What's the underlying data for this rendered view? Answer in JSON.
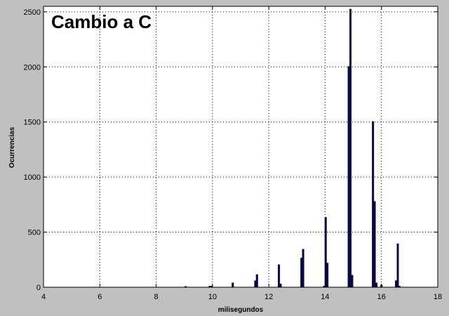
{
  "chart_data": {
    "type": "bar",
    "title": "Cambio a C",
    "xlabel": "milisegundos",
    "ylabel": "Ocurrencias",
    "xlim": [
      4,
      18
    ],
    "ylim": [
      0,
      2550
    ],
    "xticks": [
      4,
      6,
      8,
      10,
      12,
      14,
      16,
      18
    ],
    "yticks": [
      0,
      500,
      1000,
      1500,
      2000,
      2500
    ],
    "grid": true,
    "bar_color": "#0a0a50",
    "bars": [
      {
        "x": 9.05,
        "y": 8
      },
      {
        "x": 9.9,
        "y": 10
      },
      {
        "x": 9.98,
        "y": 12
      },
      {
        "x": 10.72,
        "y": 40
      },
      {
        "x": 11.52,
        "y": 60
      },
      {
        "x": 11.58,
        "y": 115
      },
      {
        "x": 12.36,
        "y": 205
      },
      {
        "x": 12.42,
        "y": 30
      },
      {
        "x": 13.16,
        "y": 265
      },
      {
        "x": 13.22,
        "y": 345
      },
      {
        "x": 13.96,
        "y": 10
      },
      {
        "x": 14.02,
        "y": 635
      },
      {
        "x": 14.08,
        "y": 220
      },
      {
        "x": 14.84,
        "y": 2005
      },
      {
        "x": 14.9,
        "y": 2525
      },
      {
        "x": 14.96,
        "y": 110
      },
      {
        "x": 15.7,
        "y": 1505
      },
      {
        "x": 15.76,
        "y": 780
      },
      {
        "x": 15.82,
        "y": 40
      },
      {
        "x": 16.0,
        "y": 20
      },
      {
        "x": 16.52,
        "y": 60
      },
      {
        "x": 16.58,
        "y": 395
      },
      {
        "x": 16.64,
        "y": 10
      }
    ]
  }
}
